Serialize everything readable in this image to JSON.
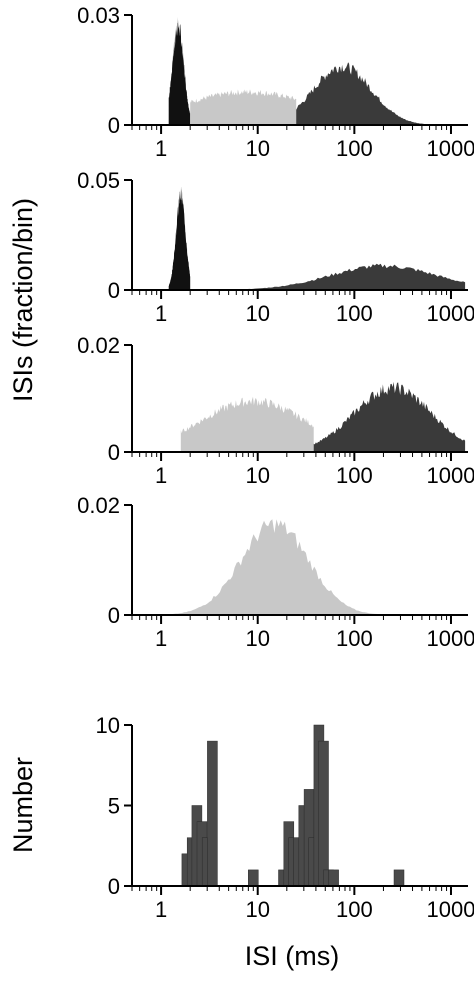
{
  "y_axis_label_top": "ISIs (fraction/bin)",
  "y_axis_label_bottom": "Number",
  "x_axis_label": "ISI (ms)",
  "colors": {
    "black": "#111111",
    "dark": "#3a3a3a",
    "light": "#c8c8c8",
    "hist": "#4a4a4a"
  },
  "chart_data": [
    {
      "type": "area",
      "xscale": "log",
      "xlim": [
        0.5,
        1500
      ],
      "ylim": [
        0,
        0.03
      ],
      "x_ticks": [
        "1",
        "10",
        "100",
        "1000"
      ],
      "y_ticks": [
        "0",
        "0.03"
      ],
      "series": [
        {
          "color": "black",
          "peaks": [
            {
              "center": 1.5,
              "sd": 0.06,
              "height": 0.027
            }
          ],
          "x_range": [
            1.2,
            2.0
          ]
        },
        {
          "color": "light",
          "peaks": [
            {
              "center": 8,
              "sd": 0.7,
              "height": 0.009
            }
          ],
          "x_range": [
            2.0,
            25
          ]
        },
        {
          "color": "dark",
          "peaks": [
            {
              "center": 75,
              "sd": 0.3,
              "height": 0.016
            }
          ],
          "x_range": [
            25,
            700
          ]
        }
      ]
    },
    {
      "type": "area",
      "xscale": "log",
      "xlim": [
        0.5,
        1500
      ],
      "ylim": [
        0,
        0.05
      ],
      "x_ticks": [
        "1",
        "10",
        "100",
        "1000"
      ],
      "y_ticks": [
        "0",
        "0.05"
      ],
      "series": [
        {
          "color": "black",
          "peaks": [
            {
              "center": 1.6,
              "sd": 0.05,
              "height": 0.043
            }
          ],
          "x_range": [
            1.2,
            2.0
          ]
        },
        {
          "color": "dark",
          "peaks": [
            {
              "center": 200,
              "sd": 0.55,
              "height": 0.011
            }
          ],
          "x_range": [
            2.0,
            1400
          ]
        }
      ]
    },
    {
      "type": "area",
      "xscale": "log",
      "xlim": [
        0.5,
        1500
      ],
      "ylim": [
        0,
        0.02
      ],
      "x_ticks": [
        "1",
        "10",
        "100",
        "1000"
      ],
      "y_ticks": [
        "0",
        "0.02"
      ],
      "series": [
        {
          "color": "light",
          "peaks": [
            {
              "center": 9,
              "sd": 0.55,
              "height": 0.0095
            }
          ],
          "x_range": [
            1.6,
            38
          ]
        },
        {
          "color": "dark",
          "peaks": [
            {
              "center": 250,
              "sd": 0.4,
              "height": 0.012
            }
          ],
          "x_range": [
            38,
            1400
          ]
        }
      ]
    },
    {
      "type": "area",
      "xscale": "log",
      "xlim": [
        0.5,
        1500
      ],
      "ylim": [
        0,
        0.02
      ],
      "x_ticks": [
        "1",
        "10",
        "100",
        "1000"
      ],
      "y_ticks": [
        "0",
        "0.02"
      ],
      "series": [
        {
          "color": "light",
          "peaks": [
            {
              "center": 15,
              "sd": 0.35,
              "height": 0.0165
            }
          ],
          "x_range": [
            1.0,
            1100
          ]
        }
      ]
    },
    {
      "type": "bar",
      "xscale": "log",
      "xlim": [
        0.5,
        1500
      ],
      "ylim": [
        0,
        10
      ],
      "x_ticks": [
        "1",
        "10",
        "100",
        "1000"
      ],
      "y_ticks": [
        "0",
        "5",
        "10"
      ],
      "bars": [
        {
          "x": 1.85,
          "value": 2
        },
        {
          "x": 2.1,
          "value": 3
        },
        {
          "x": 2.35,
          "value": 5
        },
        {
          "x": 2.65,
          "value": 4
        },
        {
          "x": 3.0,
          "value": 3
        },
        {
          "x": 3.4,
          "value": 9
        },
        {
          "x": 9.0,
          "value": 1
        },
        {
          "x": 18.5,
          "value": 1
        },
        {
          "x": 21,
          "value": 4
        },
        {
          "x": 23.5,
          "value": 3
        },
        {
          "x": 26.5,
          "value": 3
        },
        {
          "x": 30,
          "value": 5
        },
        {
          "x": 34,
          "value": 6
        },
        {
          "x": 38,
          "value": 3
        },
        {
          "x": 43,
          "value": 10
        },
        {
          "x": 48,
          "value": 9
        },
        {
          "x": 54,
          "value": 1
        },
        {
          "x": 61,
          "value": 1
        },
        {
          "x": 290,
          "value": 1
        }
      ]
    }
  ]
}
